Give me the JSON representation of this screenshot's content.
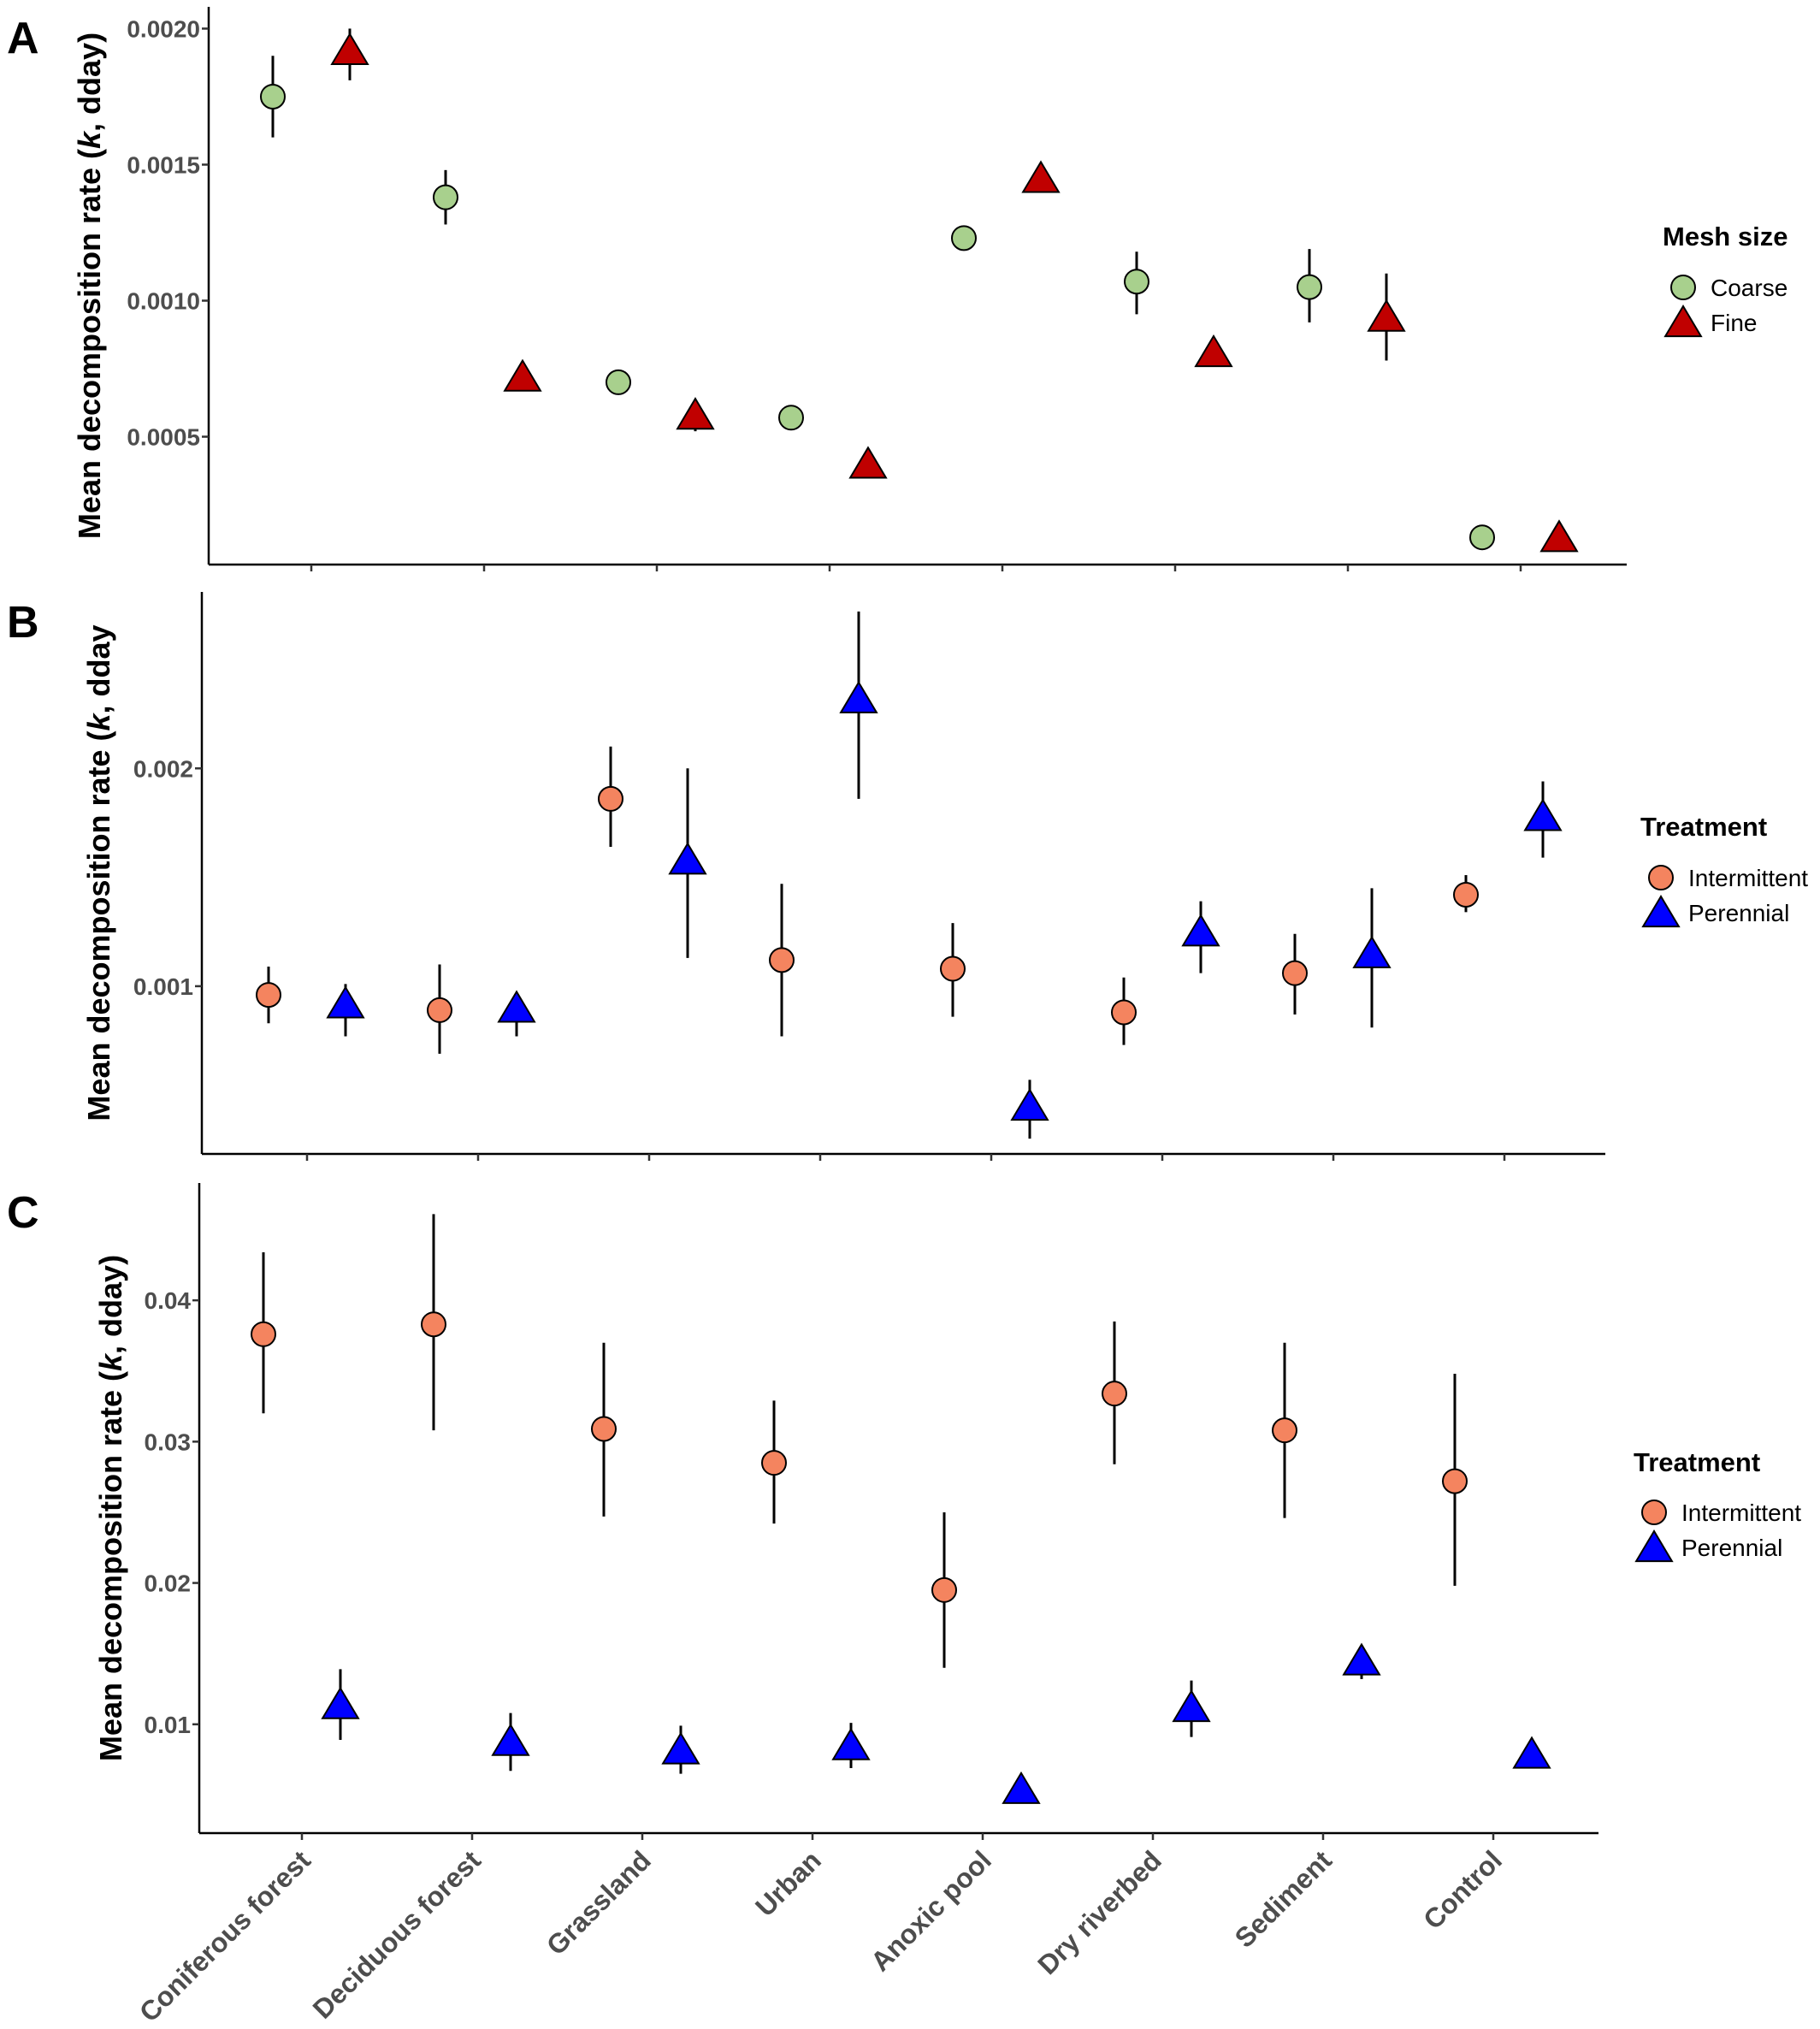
{
  "chart_data": [
    {
      "panel": "A",
      "type": "scatter",
      "ylabel_main": "Mean decomposition rate (",
      "ylabel_k": "k",
      "ylabel_unit": ", dday)",
      "categories": [
        "Coniferous forest",
        "Deciduous forest",
        "Grassland",
        "Urban",
        "Anoxic pool",
        "Dry riverbed",
        "Sediment",
        "Control"
      ],
      "ylim": [
        3e-05,
        0.00208
      ],
      "yticks": [
        0.0005,
        0.001,
        0.0015,
        0.002
      ],
      "ytick_labels": [
        "0.0005",
        "0.0010",
        "0.0015",
        "0.0020"
      ],
      "legend_title": "Mesh size",
      "legend_position": "right",
      "series": [
        {
          "name": "Coarse",
          "shape": "circle",
          "color": "#a8d08d",
          "values": [
            0.00175,
            0.00138,
            0.0007,
            0.00057,
            0.00123,
            0.00107,
            0.00105,
            0.00013
          ],
          "lower": [
            0.0016,
            0.00128,
            0.0007,
            0.00057,
            0.00123,
            0.00095,
            0.00092,
            0.00013
          ],
          "upper": [
            0.0019,
            0.00148,
            0.0007,
            0.00057,
            0.00123,
            0.00118,
            0.00119,
            0.00013
          ]
        },
        {
          "name": "Fine",
          "shape": "triangle",
          "color": "#c00000",
          "values": [
            0.00192,
            0.00072,
            0.00058,
            0.0004,
            0.00145,
            0.00081,
            0.00094,
            0.00013
          ],
          "lower": [
            0.00181,
            0.00072,
            0.00052,
            0.00035,
            0.00145,
            0.00081,
            0.00078,
            0.00013
          ],
          "upper": [
            0.002,
            0.00072,
            0.00062,
            0.00043,
            0.00145,
            0.00081,
            0.0011,
            0.00013
          ]
        }
      ]
    },
    {
      "panel": "B",
      "type": "scatter",
      "ylabel_main": "Mean decomposition rate (",
      "ylabel_k": "k",
      "ylabel_unit": ", dday",
      "categories": [
        "Coniferous forest",
        "Deciduous forest",
        "Grassland",
        "Urban",
        "Anoxic pool",
        "Dry riverbed",
        "Sediment",
        "Control"
      ],
      "ylim": [
        0.00023,
        0.00281
      ],
      "yticks": [
        0.001,
        0.002
      ],
      "ytick_labels": [
        "0.001",
        "0.002"
      ],
      "legend_title": "Treatment",
      "legend_position": "right",
      "series": [
        {
          "name": "Intermittent",
          "shape": "circle",
          "color": "#f4845f",
          "values": [
            0.00096,
            0.00089,
            0.00186,
            0.00112,
            0.00108,
            0.00088,
            0.00106,
            0.00142
          ],
          "lower": [
            0.00083,
            0.00069,
            0.00164,
            0.00077,
            0.00086,
            0.00073,
            0.00087,
            0.00134
          ],
          "upper": [
            0.00109,
            0.0011,
            0.0021,
            0.00147,
            0.00129,
            0.00104,
            0.00124,
            0.00151
          ]
        },
        {
          "name": "Perennial",
          "shape": "triangle",
          "color": "#0000ff",
          "values": [
            0.00092,
            0.0009,
            0.00158,
            0.00232,
            0.00045,
            0.00125,
            0.00115,
            0.00178
          ],
          "lower": [
            0.00077,
            0.00077,
            0.00113,
            0.00186,
            0.0003,
            0.00106,
            0.00081,
            0.00159
          ],
          "upper": [
            0.00101,
            0.0009,
            0.002,
            0.00272,
            0.00057,
            0.00139,
            0.00145,
            0.00194
          ]
        }
      ]
    },
    {
      "panel": "C",
      "type": "scatter",
      "ylabel_main": "Mean decomposition rate (",
      "ylabel_k": "k",
      "ylabel_unit": ", dday)",
      "categories": [
        "Coniferous forest",
        "Deciduous forest",
        "Grassland",
        "Urban",
        "Anoxic pool",
        "Dry riverbed",
        "Sediment",
        "Control"
      ],
      "ylim": [
        0.0023,
        0.0483
      ],
      "yticks": [
        0.01,
        0.02,
        0.03,
        0.04
      ],
      "ytick_labels": [
        "0.01",
        "0.02",
        "0.03",
        "0.04"
      ],
      "legend_title": "Treatment",
      "legend_position": "right",
      "series": [
        {
          "name": "Intermittent",
          "shape": "circle",
          "color": "#f4845f",
          "values": [
            0.0376,
            0.0383,
            0.0309,
            0.0285,
            0.0195,
            0.0334,
            0.0308,
            0.0272
          ],
          "lower": [
            0.032,
            0.0308,
            0.0247,
            0.0242,
            0.014,
            0.0284,
            0.0246,
            0.0198
          ],
          "upper": [
            0.0434,
            0.0461,
            0.037,
            0.0329,
            0.025,
            0.0385,
            0.037,
            0.0348
          ]
        },
        {
          "name": "Perennial",
          "shape": "triangle",
          "color": "#0000ff",
          "values": [
            0.0114,
            0.0088,
            0.0082,
            0.0085,
            0.0054,
            0.0112,
            0.0145,
            0.0079
          ],
          "lower": [
            0.0089,
            0.0067,
            0.0065,
            0.0069,
            0.0048,
            0.0091,
            0.0132,
            0.0069
          ],
          "upper": [
            0.0139,
            0.0108,
            0.0099,
            0.0101,
            0.0054,
            0.0131,
            0.0145,
            0.0079
          ]
        }
      ]
    }
  ]
}
